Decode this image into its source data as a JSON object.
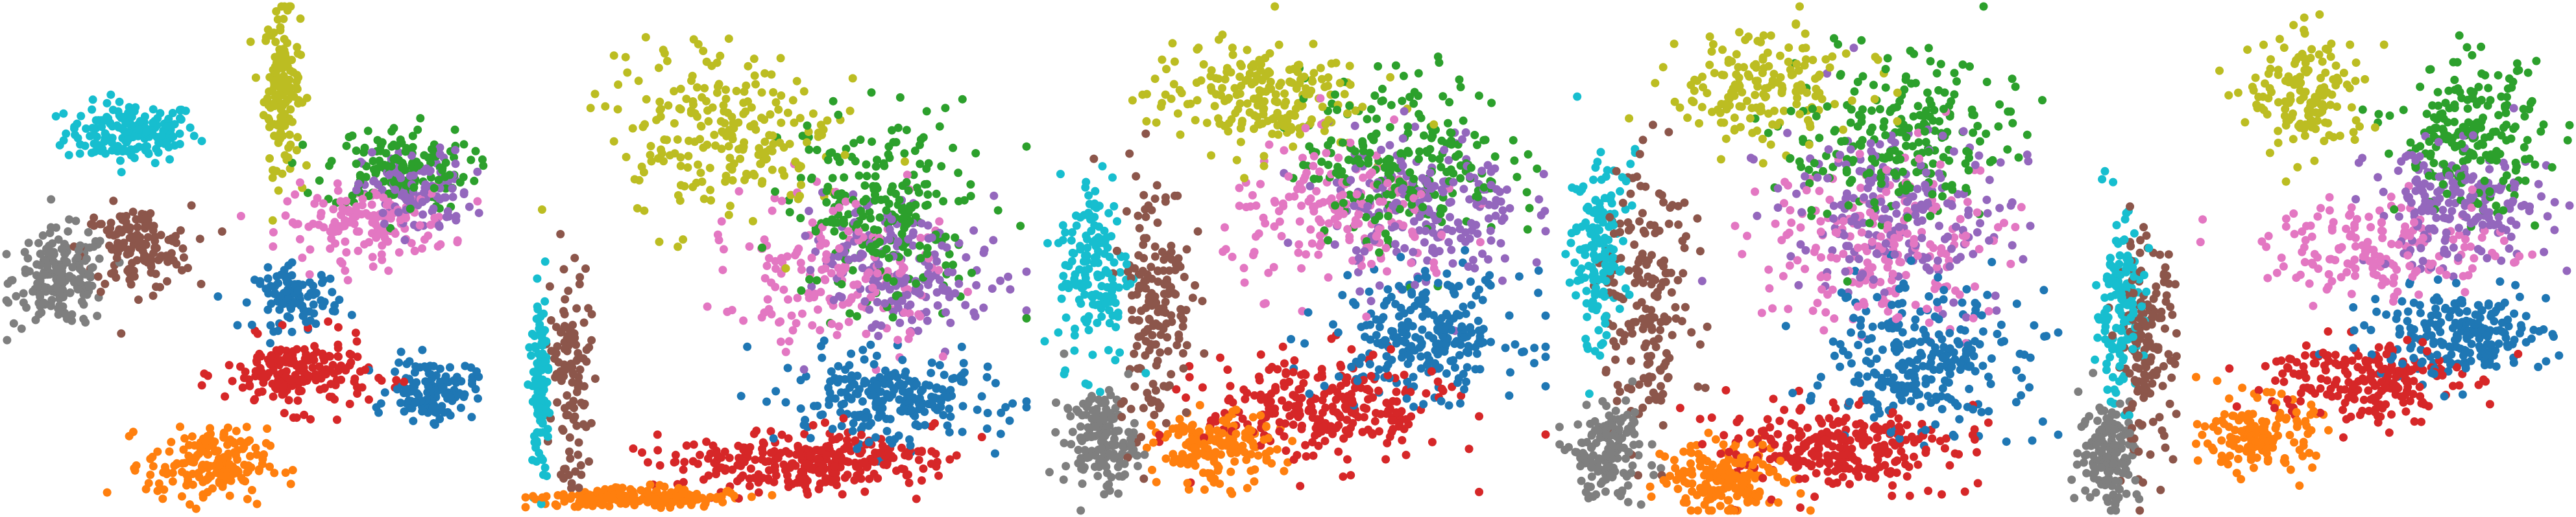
{
  "chart_data": {
    "type": "scatter",
    "title": "",
    "xlabel": "",
    "ylabel": "",
    "axes_visible": false,
    "grid": false,
    "legend": "none",
    "marker": "filled-circle",
    "palette": {
      "blue": "#1f77b4",
      "orange": "#ff7f0e",
      "green": "#2ca02c",
      "red": "#d62728",
      "purple": "#9467bd",
      "brown": "#8c564b",
      "pink": "#e377c2",
      "gray": "#7f7f7f",
      "olive": "#bcbd22",
      "cyan": "#17becf"
    },
    "panels": [
      {
        "xlim": [
          0,
          100
        ],
        "ylim": [
          0,
          100
        ],
        "clusters": [
          {
            "color": "cyan",
            "center": [
              25,
              75
            ],
            "spread": [
              11,
              5
            ],
            "count": 170
          },
          {
            "color": "olive",
            "center": [
              55,
              84
            ],
            "spread": [
              3,
              13
            ],
            "count": 150
          },
          {
            "color": "gray",
            "center": [
              11,
              46
            ],
            "spread": [
              8,
              8
            ],
            "count": 180
          },
          {
            "color": "brown",
            "center": [
              26,
              52
            ],
            "spread": [
              9,
              7
            ],
            "count": 140
          },
          {
            "color": "green",
            "center": [
              78,
              68
            ],
            "spread": [
              12,
              7
            ],
            "count": 150
          },
          {
            "color": "purple",
            "center": [
              82,
              63
            ],
            "spread": [
              9,
              7
            ],
            "count": 120
          },
          {
            "color": "pink",
            "center": [
              72,
              57
            ],
            "spread": [
              14,
              6
            ],
            "count": 150
          },
          {
            "color": "blue",
            "center": [
              58,
              42
            ],
            "spread": [
              7,
              5
            ],
            "count": 100
          },
          {
            "color": "red",
            "center": [
              58,
              27
            ],
            "spread": [
              12,
              6
            ],
            "count": 190
          },
          {
            "color": "blue",
            "center": [
              85,
              24
            ],
            "spread": [
              7,
              5
            ],
            "count": 130
          },
          {
            "color": "orange",
            "center": [
              40,
              9
            ],
            "spread": [
              10,
              6
            ],
            "count": 180
          }
        ]
      },
      {
        "xlim": [
          0,
          100
        ],
        "ylim": [
          0,
          100
        ],
        "clusters": [
          {
            "color": "cyan",
            "center": [
              3,
              25
            ],
            "spread": [
              1.5,
              14
            ],
            "count": 110
          },
          {
            "color": "brown",
            "center": [
              9,
              28
            ],
            "spread": [
              4,
              18
            ],
            "count": 110
          },
          {
            "color": "olive",
            "center": [
              40,
              74
            ],
            "spread": [
              18,
              14
            ],
            "count": 230
          },
          {
            "color": "green",
            "center": [
              72,
              60
            ],
            "spread": [
              16,
              16
            ],
            "count": 230
          },
          {
            "color": "purple",
            "center": [
              76,
              48
            ],
            "spread": [
              15,
              12
            ],
            "count": 190
          },
          {
            "color": "pink",
            "center": [
              62,
              47
            ],
            "spread": [
              18,
              12
            ],
            "count": 170
          },
          {
            "color": "blue",
            "center": [
              72,
              22
            ],
            "spread": [
              17,
              7
            ],
            "count": 230
          },
          {
            "color": "red",
            "center": [
              55,
              10
            ],
            "spread": [
              23,
              5
            ],
            "count": 290
          },
          {
            "color": "orange",
            "center": [
              22,
              2.5
            ],
            "spread": [
              17,
              1.5
            ],
            "count": 180
          }
        ]
      },
      {
        "xlim": [
          0,
          100
        ],
        "ylim": [
          0,
          100
        ],
        "clusters": [
          {
            "color": "cyan",
            "center": [
              10,
              48
            ],
            "spread": [
              6,
              16
            ],
            "count": 160
          },
          {
            "color": "brown",
            "center": [
              22,
              42
            ],
            "spread": [
              6,
              22
            ],
            "count": 170
          },
          {
            "color": "gray",
            "center": [
              11,
              14
            ],
            "spread": [
              6,
              8
            ],
            "count": 150
          },
          {
            "color": "olive",
            "center": [
              42,
              82
            ],
            "spread": [
              18,
              9
            ],
            "count": 210
          },
          {
            "color": "green",
            "center": [
              72,
              70
            ],
            "spread": [
              17,
              14
            ],
            "count": 230
          },
          {
            "color": "purple",
            "center": [
              76,
              60
            ],
            "spread": [
              16,
              13
            ],
            "count": 200
          },
          {
            "color": "pink",
            "center": [
              60,
              58
            ],
            "spread": [
              20,
              12
            ],
            "count": 180
          },
          {
            "color": "blue",
            "center": [
              76,
              35
            ],
            "spread": [
              16,
              10
            ],
            "count": 250
          },
          {
            "color": "red",
            "center": [
              56,
              20
            ],
            "spread": [
              20,
              9
            ],
            "count": 270
          },
          {
            "color": "orange",
            "center": [
              34,
              12
            ],
            "spread": [
              10,
              6
            ],
            "count": 160
          }
        ]
      },
      {
        "xlim": [
          0,
          100
        ],
        "ylim": [
          0,
          100
        ],
        "clusters": [
          {
            "color": "cyan",
            "center": [
              8,
              52
            ],
            "spread": [
              5,
              16
            ],
            "count": 150
          },
          {
            "color": "brown",
            "center": [
              18,
              42
            ],
            "spread": [
              7,
              22
            ],
            "count": 180
          },
          {
            "color": "gray",
            "center": [
              10,
              12
            ],
            "spread": [
              6,
              9
            ],
            "count": 160
          },
          {
            "color": "olive",
            "center": [
              40,
              84
            ],
            "spread": [
              16,
              9
            ],
            "count": 170
          },
          {
            "color": "green",
            "center": [
              70,
              74
            ],
            "spread": [
              18,
              14
            ],
            "count": 230
          },
          {
            "color": "purple",
            "center": [
              66,
              60
            ],
            "spread": [
              20,
              14
            ],
            "count": 210
          },
          {
            "color": "pink",
            "center": [
              64,
              54
            ],
            "spread": [
              20,
              15
            ],
            "count": 200
          },
          {
            "color": "blue",
            "center": [
              74,
              30
            ],
            "spread": [
              17,
              12
            ],
            "count": 260
          },
          {
            "color": "red",
            "center": [
              56,
              12
            ],
            "spread": [
              18,
              7
            ],
            "count": 260
          },
          {
            "color": "orange",
            "center": [
              34,
              6
            ],
            "spread": [
              10,
              6
            ],
            "count": 180
          }
        ]
      },
      {
        "xlim": [
          0,
          100
        ],
        "ylim": [
          0,
          100
        ],
        "clusters": [
          {
            "color": "cyan",
            "center": [
              10,
              40
            ],
            "spread": [
              4,
              15
            ],
            "count": 150
          },
          {
            "color": "brown",
            "center": [
              15,
              32
            ],
            "spread": [
              5,
              18
            ],
            "count": 160
          },
          {
            "color": "gray",
            "center": [
              8,
              12
            ],
            "spread": [
              5,
              9
            ],
            "count": 150
          },
          {
            "color": "olive",
            "center": [
              48,
              82
            ],
            "spread": [
              10,
              10
            ],
            "count": 150
          },
          {
            "color": "green",
            "center": [
              80,
              74
            ],
            "spread": [
              12,
              12
            ],
            "count": 210
          },
          {
            "color": "purple",
            "center": [
              78,
              60
            ],
            "spread": [
              15,
              10
            ],
            "count": 200
          },
          {
            "color": "pink",
            "center": [
              63,
              52
            ],
            "spread": [
              20,
              8
            ],
            "count": 170
          },
          {
            "color": "blue",
            "center": [
              78,
              35
            ],
            "spread": [
              15,
              7
            ],
            "count": 220
          },
          {
            "color": "red",
            "center": [
              58,
              26
            ],
            "spread": [
              16,
              7
            ],
            "count": 210
          },
          {
            "color": "orange",
            "center": [
              38,
              15
            ],
            "spread": [
              9,
              6
            ],
            "count": 150
          }
        ]
      }
    ]
  }
}
